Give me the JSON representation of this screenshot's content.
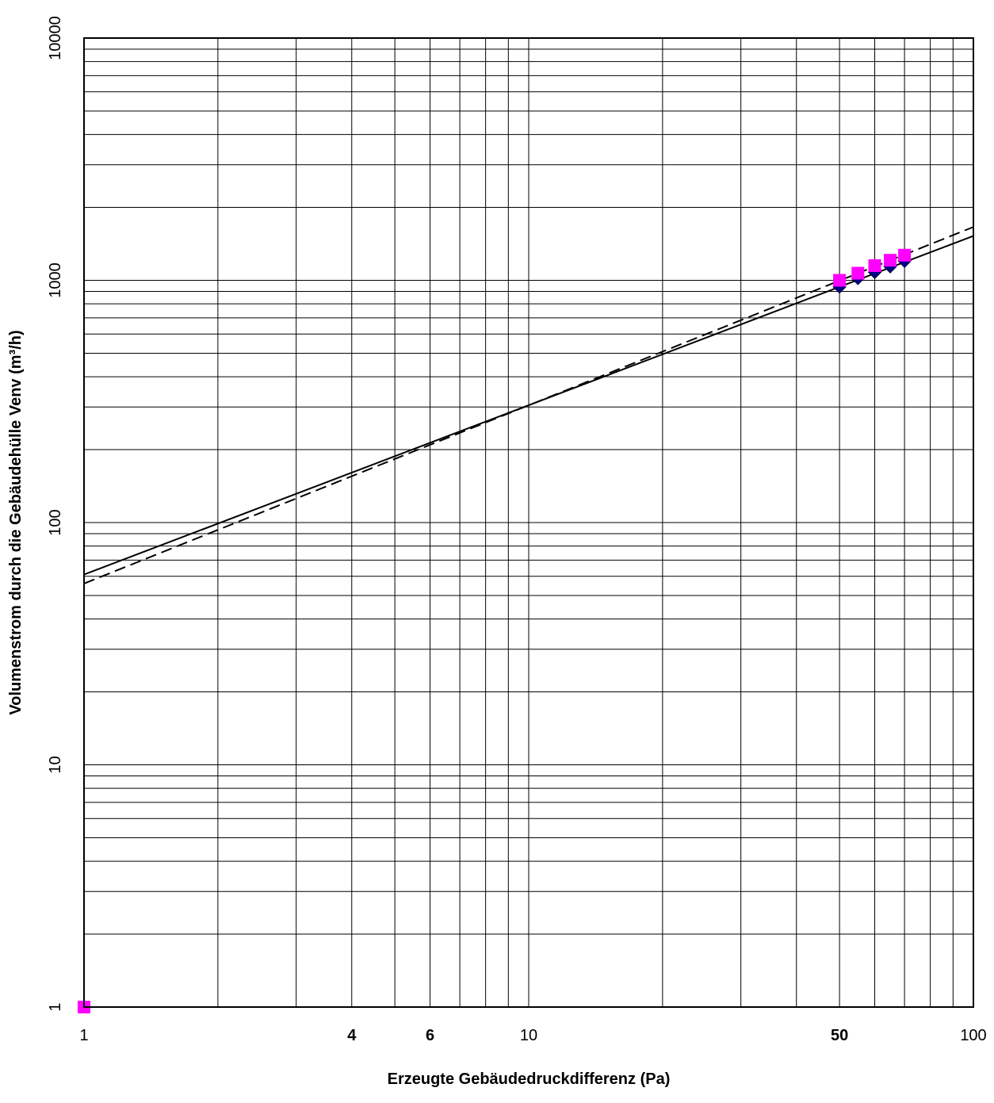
{
  "chart_data": {
    "type": "scatter",
    "xlabel": "Erzeugte Gebäudedruckdifferenz (Pa)",
    "ylabel": "Volumenstrom durch die Gebäudehülle Venv (m³/h)",
    "x_scale": "log",
    "y_scale": "log",
    "xlim": [
      1,
      100
    ],
    "ylim": [
      1,
      10000
    ],
    "grid": true,
    "x_ticks": [
      {
        "value": 1,
        "label": "1",
        "bold": false,
        "color": "#000000"
      },
      {
        "value": 4,
        "label": "4",
        "bold": true,
        "color": "#000000"
      },
      {
        "value": 6,
        "label": "6",
        "bold": true,
        "color": "#000000"
      },
      {
        "value": 10,
        "label": "10",
        "bold": false,
        "color": "#000000"
      },
      {
        "value": 50,
        "label": "50",
        "bold": true,
        "color": "#ff0000"
      },
      {
        "value": 100,
        "label": "100",
        "bold": false,
        "color": "#000000"
      }
    ],
    "y_ticks": [
      {
        "value": 1,
        "label": "1"
      },
      {
        "value": 10,
        "label": "10"
      },
      {
        "value": 100,
        "label": "100"
      },
      {
        "value": 1000,
        "label": "1000"
      },
      {
        "value": 10000,
        "label": "10000"
      }
    ],
    "series": [
      {
        "marker": "diamond",
        "color": "#00008b",
        "points": [
          [
            50,
            940
          ],
          [
            55,
            1020
          ],
          [
            60,
            1080
          ],
          [
            65,
            1140
          ],
          [
            70,
            1200
          ]
        ]
      },
      {
        "marker": "square",
        "color": "#ff00ff",
        "points": [
          [
            1,
            1
          ],
          [
            50,
            1000
          ],
          [
            55,
            1070
          ],
          [
            60,
            1150
          ],
          [
            65,
            1210
          ],
          [
            70,
            1270
          ]
        ]
      }
    ],
    "lines": [
      {
        "style": "solid",
        "color": "#000000",
        "points": [
          [
            1,
            61
          ],
          [
            100,
            1525
          ]
        ]
      },
      {
        "style": "dashed",
        "color": "#000000",
        "points": [
          [
            1,
            56
          ],
          [
            100,
            1660
          ]
        ]
      }
    ]
  }
}
